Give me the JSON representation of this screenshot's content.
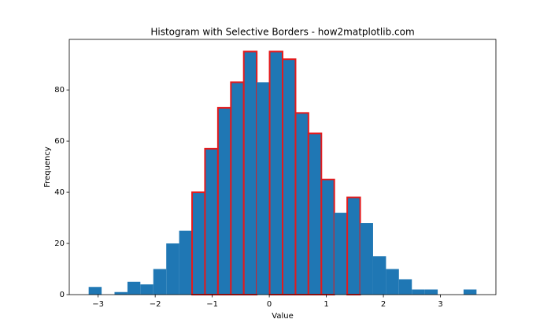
{
  "chart_data": {
    "type": "histogram",
    "title": "Histogram with Selective Borders - how2matplotlib.com",
    "xlabel": "Value",
    "ylabel": "Frequency",
    "bins": [
      -3.166,
      -2.939,
      -2.713,
      -2.486,
      -2.26,
      -2.033,
      -1.806,
      -1.58,
      -1.353,
      -1.127,
      -0.9,
      -0.673,
      -0.447,
      -0.22,
      0.006,
      0.233,
      0.46,
      0.686,
      0.913,
      1.139,
      1.366,
      1.593,
      1.819,
      2.046,
      2.272,
      2.499,
      2.726,
      2.952,
      3.179,
      3.405,
      3.632
    ],
    "values": [
      3,
      0,
      1,
      5,
      4,
      10,
      20,
      25,
      40,
      57,
      73,
      83,
      95,
      83,
      95,
      92,
      71,
      63,
      45,
      32,
      38,
      28,
      15,
      10,
      6,
      2,
      2,
      0,
      0,
      2
    ],
    "highlighted": [
      false,
      false,
      false,
      false,
      false,
      false,
      false,
      false,
      true,
      true,
      true,
      true,
      true,
      false,
      true,
      true,
      true,
      true,
      true,
      false,
      true,
      false,
      false,
      false,
      false,
      false,
      false,
      false,
      false,
      false
    ],
    "color": "#1f77b4",
    "highlight_edge_color": "#e41a1c",
    "xlim": [
      -3.506,
      3.972
    ],
    "ylim": [
      0,
      99.75
    ],
    "xticks": [
      {
        "value": -3,
        "label": "−3"
      },
      {
        "value": -2,
        "label": "−2"
      },
      {
        "value": -1,
        "label": "−1"
      },
      0,
      1,
      2,
      3
    ],
    "yticks": [
      0,
      20,
      40,
      60,
      80
    ],
    "grid": false
  }
}
